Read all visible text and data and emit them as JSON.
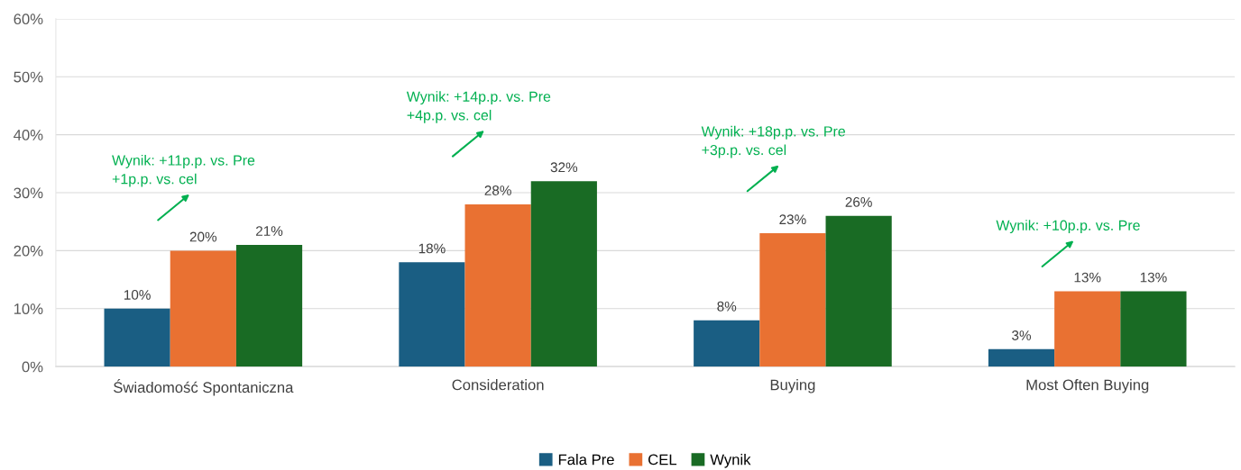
{
  "chart_data": {
    "type": "bar",
    "categories": [
      "Świadomość Spontaniczna",
      "Consideration",
      "Buying",
      "Most Often Buying"
    ],
    "series": [
      {
        "name": "Fala Pre",
        "color": "#1a5e83",
        "values": [
          10,
          18,
          8,
          3
        ],
        "value_labels": [
          "10%",
          "18%",
          "8%",
          "3%"
        ]
      },
      {
        "name": "CEL",
        "color": "#e97132",
        "values": [
          20,
          28,
          23,
          13
        ],
        "value_labels": [
          "20%",
          "28%",
          "23%",
          "13%"
        ]
      },
      {
        "name": "Wynik",
        "color": "#196b24",
        "values": [
          21,
          32,
          26,
          13
        ],
        "value_labels": [
          "21%",
          "32%",
          "26%",
          "13%"
        ]
      }
    ],
    "ylim": [
      0,
      60
    ],
    "yticks": [
      {
        "value": 0,
        "label": "0%"
      },
      {
        "value": 10,
        "label": "10%"
      },
      {
        "value": 20,
        "label": "20%"
      },
      {
        "value": 30,
        "label": "30%"
      },
      {
        "value": 40,
        "label": "40%"
      },
      {
        "value": 50,
        "label": "50%"
      },
      {
        "value": 60,
        "label": "60%"
      }
    ],
    "grid": "y",
    "legend": "bottom",
    "annotations": [
      "Wynik: +11p.p. vs. Pre\n+1p.p. vs. cel",
      "Wynik: +14p.p. vs. Pre\n+4p.p. vs. cel",
      "Wynik: +18p.p. vs. Pre\n+3p.p. vs. cel",
      "Wynik: +10p.p. vs. Pre"
    ]
  }
}
